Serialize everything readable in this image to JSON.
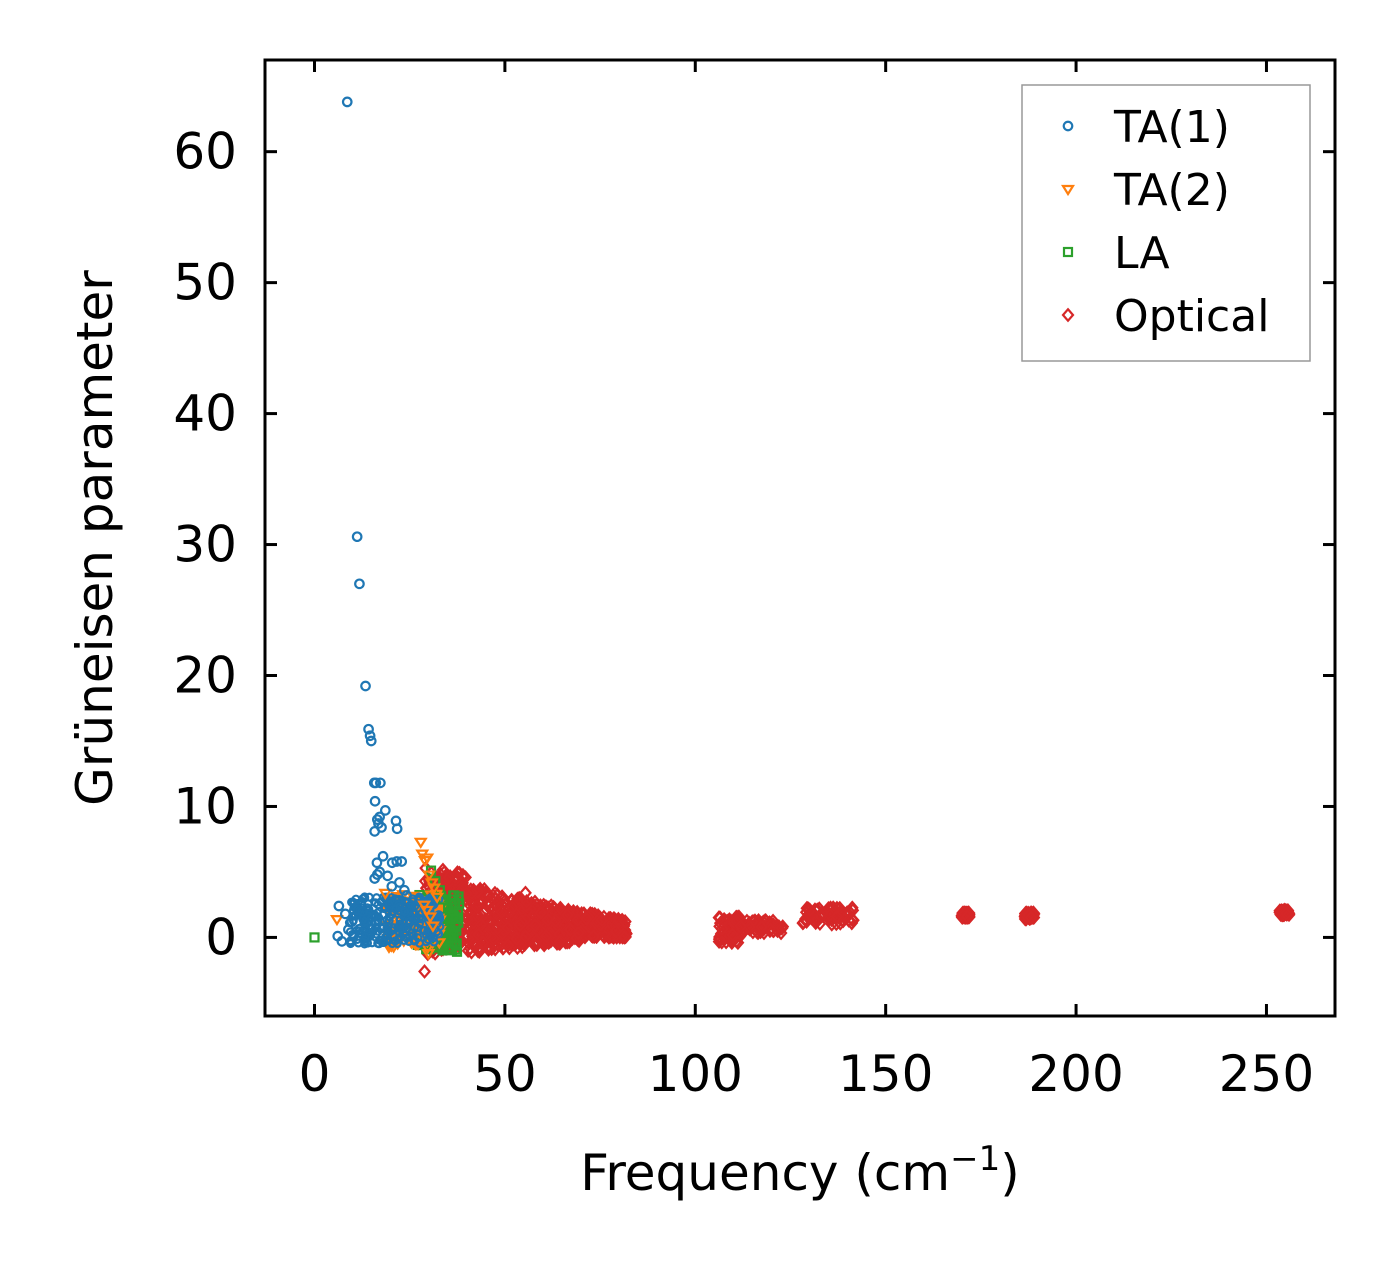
{
  "chart_data": {
    "type": "scatter",
    "title": "",
    "xlabel": "Frequency (cm",
    "xlabel_sup": "−1",
    "xlabel_tail": ")",
    "ylabel": "Grüneisen parameter",
    "xlim": [
      -13,
      268
    ],
    "ylim": [
      -6,
      67
    ],
    "xticks": [
      0,
      50,
      100,
      150,
      200,
      250
    ],
    "xtick_labels": [
      "0",
      "50",
      "100",
      "150",
      "200",
      "250"
    ],
    "yticks": [
      0,
      10,
      20,
      30,
      40,
      50,
      60
    ],
    "ytick_labels": [
      "0",
      "10",
      "20",
      "30",
      "40",
      "50",
      "60"
    ],
    "legend": {
      "placement": "top-right"
    },
    "series": [
      {
        "name": "TA(1)",
        "marker": "circle",
        "color": "#1f77b4",
        "x": [
          8.6,
          11.2,
          11.8,
          13.4,
          14.2,
          14.6,
          14.9,
          15.7,
          16.1,
          17.3,
          15.9,
          16.5,
          17.1,
          18.6,
          15.8,
          17.6,
          16.8,
          21.4,
          21.7,
          16.4,
          18.0,
          20.4,
          21.6,
          22.9,
          15.8,
          16.5,
          19.2,
          17.1,
          20.3,
          22.3,
          23.6,
          24.2,
          6.4,
          8.1,
          9.8,
          11.5,
          12.7,
          6.1,
          7.2,
          8.9,
          10.4
        ],
        "y": [
          63.8,
          30.6,
          27.0,
          19.2,
          15.9,
          15.4,
          15.0,
          11.8,
          11.8,
          11.8,
          10.4,
          9.0,
          9.2,
          9.7,
          8.1,
          8.4,
          8.7,
          8.9,
          8.3,
          5.7,
          6.2,
          5.7,
          5.8,
          5.8,
          4.5,
          4.8,
          4.7,
          5.0,
          3.9,
          4.2,
          3.6,
          3.2,
          2.4,
          1.8,
          1.2,
          2.1,
          2.0,
          0.1,
          -0.3,
          0.6,
          0.2
        ]
      },
      {
        "name": "TA(2)",
        "marker": "triangle-down",
        "color": "#ff7f0e",
        "x": [
          5.9,
          18.6,
          27.9,
          28.3,
          29.0,
          29.6,
          30.1,
          30.8,
          31.4,
          32.2,
          28.8,
          29.5,
          30.4,
          31.1,
          29.9
        ],
        "y": [
          1.4,
          3.4,
          7.3,
          6.4,
          5.9,
          6.1,
          4.8,
          4.2,
          3.8,
          3.1,
          2.5,
          2.1,
          1.6,
          0.9,
          -1.2
        ]
      },
      {
        "name": "LA",
        "marker": "square",
        "color": "#2ca02c",
        "x": [
          0.0,
          30.6,
          31.7,
          32.9,
          33.8,
          35.1,
          36.4,
          37.2,
          38.0
        ],
        "y": [
          0.0,
          5.1,
          4.3,
          3.6,
          2.9,
          2.2,
          1.7,
          1.4,
          2.6
        ]
      },
      {
        "name": "Optical",
        "marker": "diamond",
        "color": "#d62728",
        "x": [
          28.9,
          55.4,
          79.8,
          81.6,
          106.5,
          109.8,
          111.2,
          117.4,
          121.6,
          122.7,
          130.1,
          133.4,
          137.2,
          140.3,
          141.1,
          170.8,
          171.4,
          187.6,
          188.2,
          254.1,
          255.2
        ],
        "y": [
          -2.6,
          3.4,
          1.4,
          1.2,
          1.5,
          0.2,
          -0.4,
          0.8,
          0.5,
          0.7,
          2.1,
          1.9,
          1.6,
          1.3,
          1.1,
          1.8,
          1.6,
          1.7,
          1.5,
          2.0,
          1.8
        ]
      }
    ]
  }
}
